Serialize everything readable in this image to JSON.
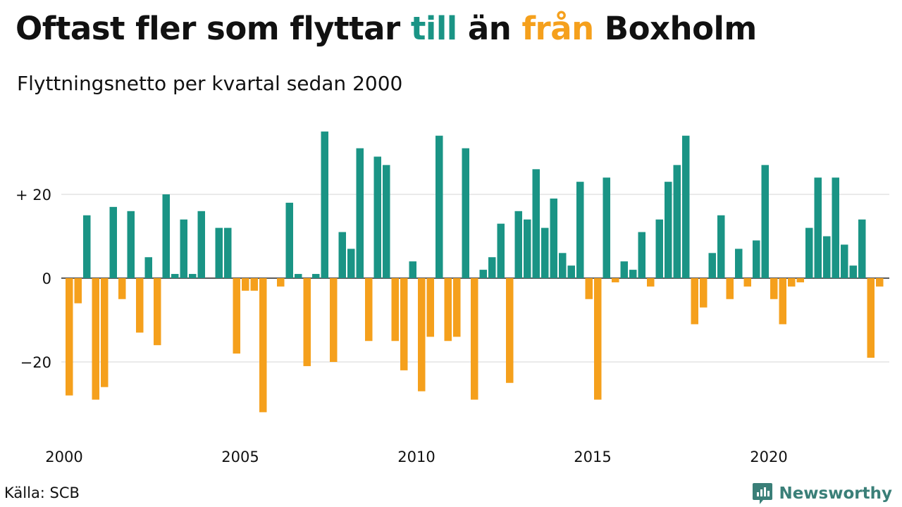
{
  "title": {
    "part1": "Oftast fler som flyttar ",
    "highlight_in": "till",
    "part2": " än ",
    "highlight_out": "från",
    "part3": " Boxholm"
  },
  "subtitle": "Flyttningsnetto per kvartal sedan 2000",
  "source": "Källa: SCB",
  "brand": {
    "name": "Newsworthy",
    "icon": "newsworthy-chart-logo-icon"
  },
  "colors": {
    "positive": "#1a9485",
    "negative": "#f5a01c",
    "grid": "#dedede",
    "brand": "#3a7f78"
  },
  "chart_data": {
    "type": "bar",
    "ylim": [
      -38,
      40
    ],
    "y_ticks": [
      {
        "value": 20,
        "label": "+ 20"
      },
      {
        "value": 0,
        "label": "0"
      },
      {
        "value": -20,
        "label": "−20"
      }
    ],
    "x_ticks": [
      {
        "year": 2000,
        "label": "2000"
      },
      {
        "year": 2005,
        "label": "2005"
      },
      {
        "year": 2010,
        "label": "2010"
      },
      {
        "year": 2015,
        "label": "2015"
      },
      {
        "year": 2020,
        "label": "2020"
      }
    ],
    "x_start": "2000 Q1",
    "series": [
      {
        "name": "Flyttningsnetto",
        "values": [
          -28,
          -6,
          15,
          -29,
          -26,
          17,
          -5,
          16,
          -13,
          5,
          -16,
          20,
          1,
          14,
          1,
          16,
          0,
          12,
          12,
          -18,
          -3,
          -3,
          -32,
          0,
          -2,
          18,
          1,
          -21,
          1,
          35,
          -20,
          11,
          7,
          31,
          -15,
          29,
          27,
          -15,
          -22,
          4,
          -27,
          -14,
          34,
          -15,
          -14,
          31,
          -29,
          2,
          5,
          13,
          -25,
          16,
          14,
          26,
          12,
          19,
          6,
          3,
          23,
          -5,
          -29,
          24,
          -1,
          4,
          2,
          11,
          -2,
          14,
          23,
          27,
          34,
          -11,
          -7,
          6,
          15,
          -5,
          7,
          -2,
          9,
          27,
          -5,
          -11,
          -2,
          -1,
          12,
          24,
          10,
          24,
          8,
          3,
          14,
          -19,
          -2
        ]
      }
    ]
  }
}
